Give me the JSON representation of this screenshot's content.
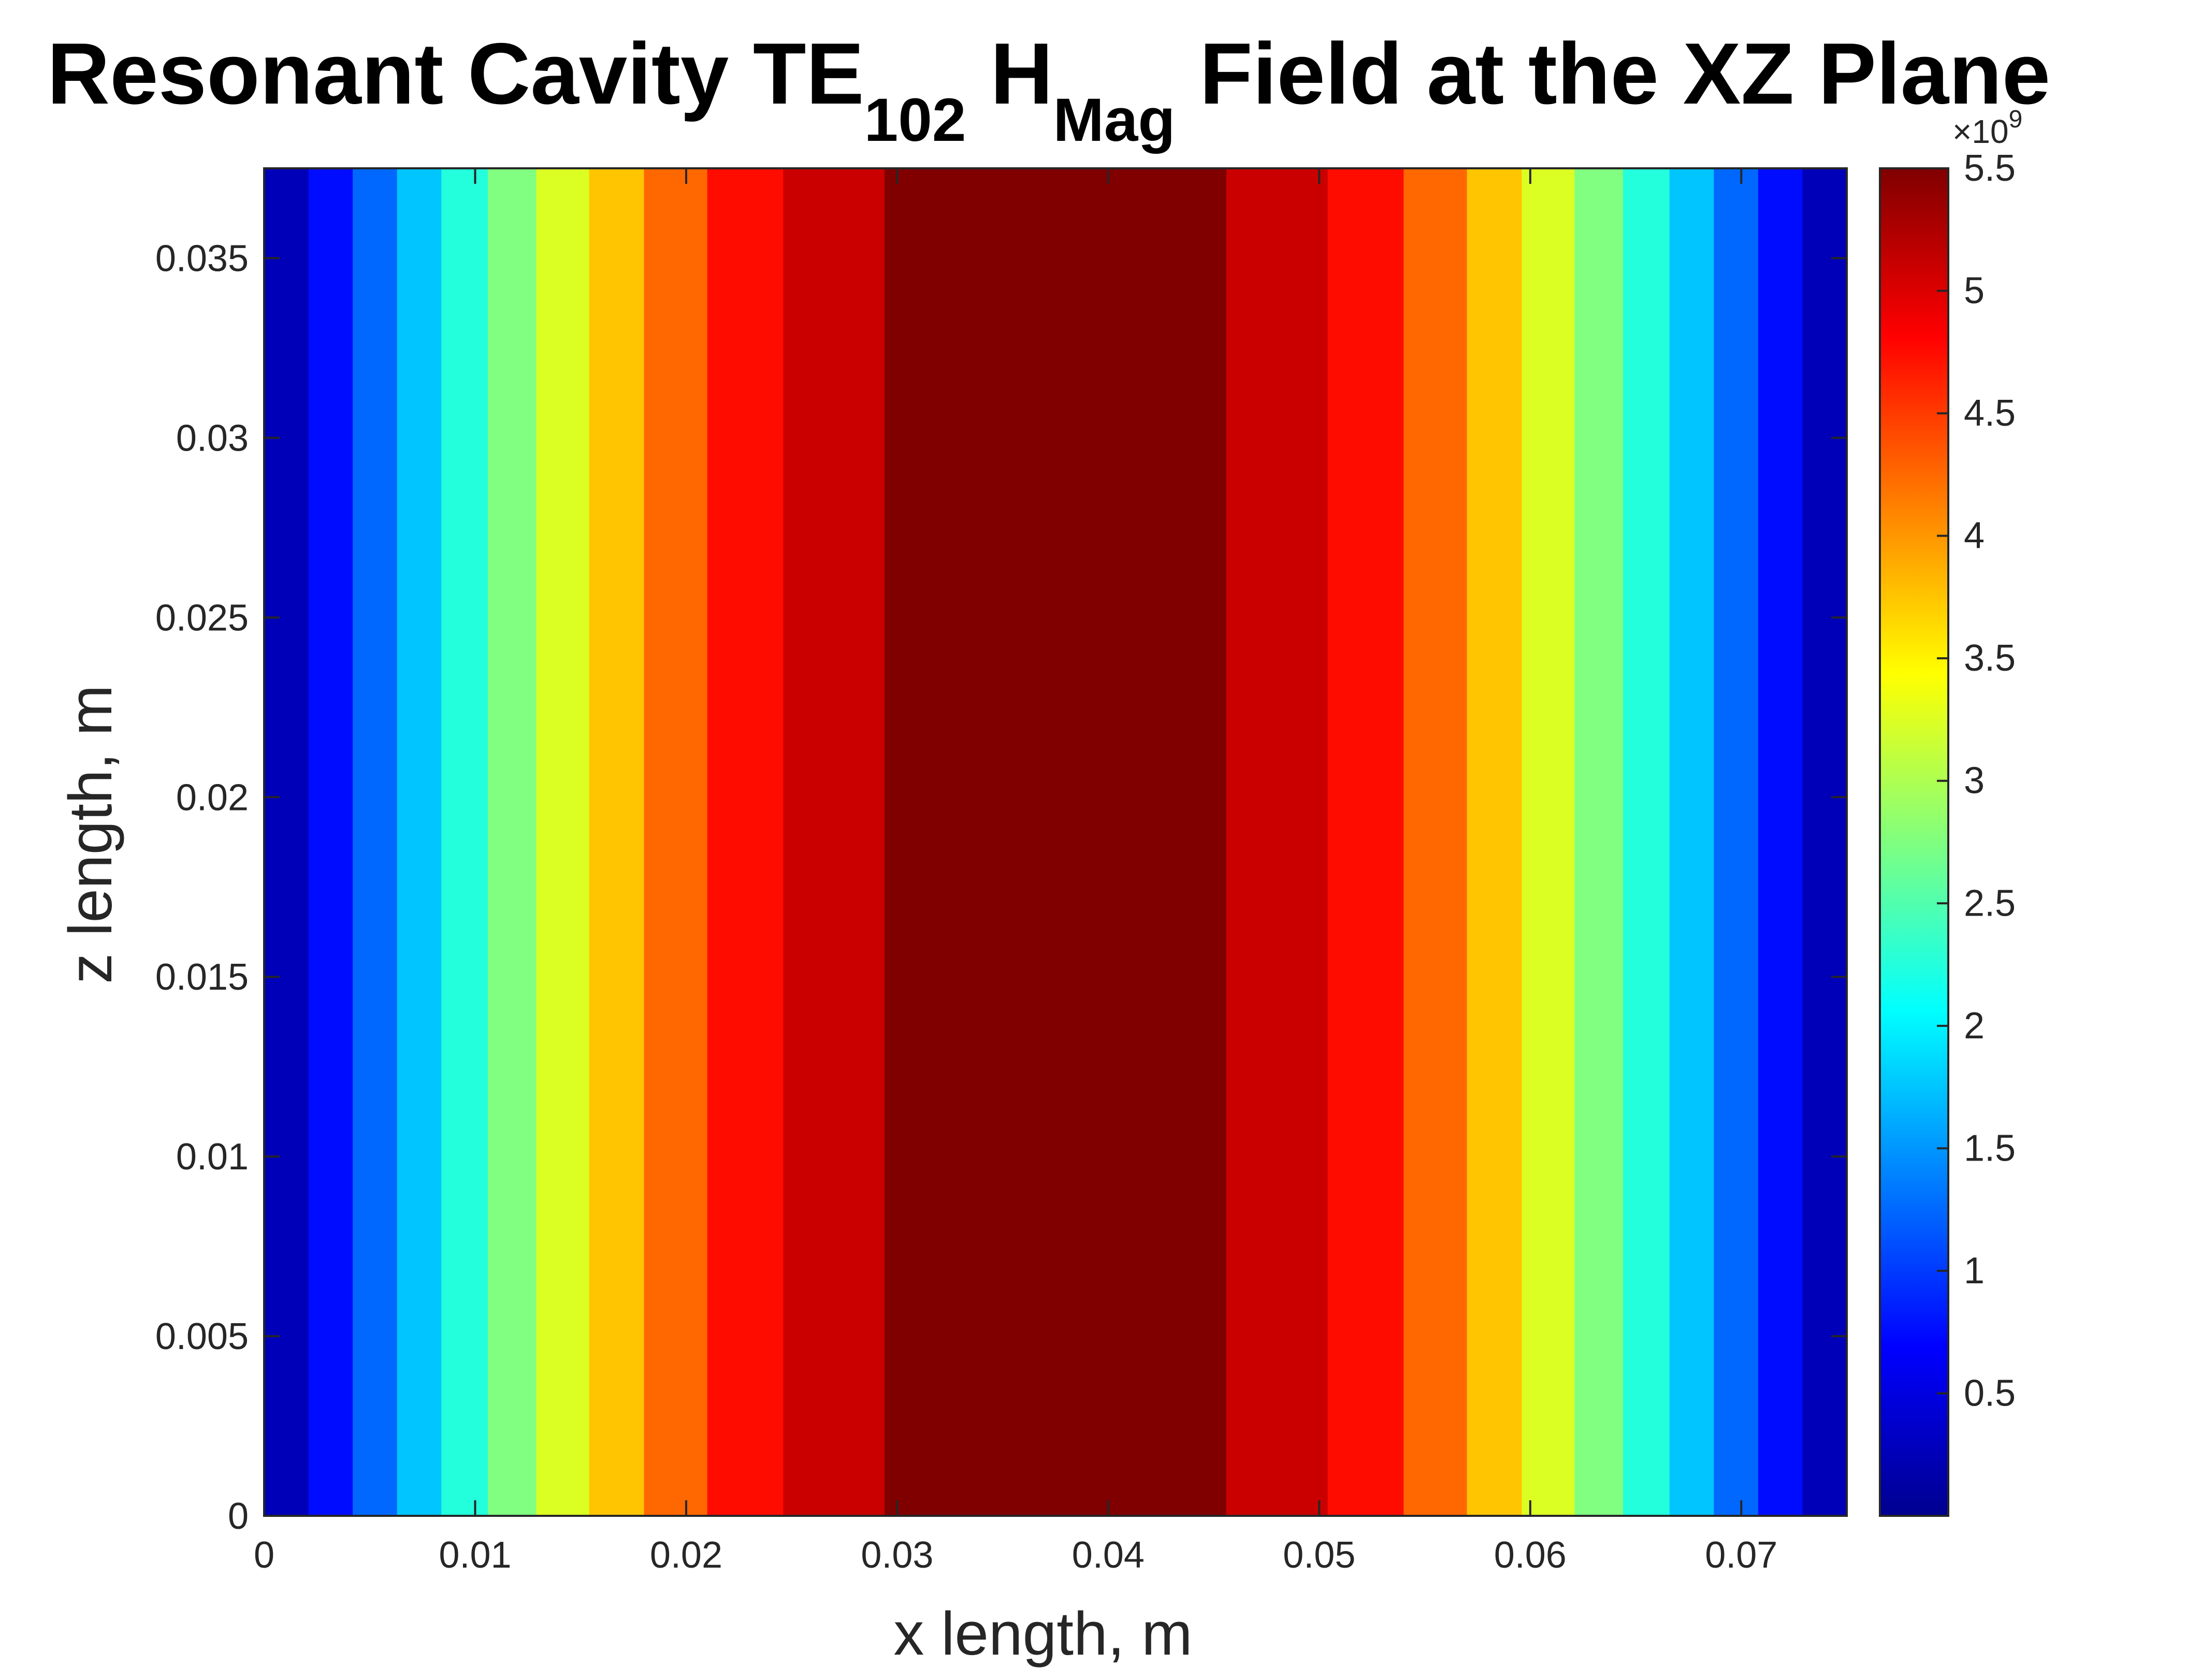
{
  "chart_data": {
    "type": "heatmap",
    "title": {
      "prefix": "Resonant Cavity TE",
      "sub1": "102",
      "mid": " H",
      "sub2": "Mag",
      "suffix": " Field at the XZ Plane"
    },
    "xlabel": "x length, m",
    "ylabel": "z length, m",
    "xlim": [
      0,
      0.075
    ],
    "ylim": [
      0,
      0.0375
    ],
    "x_ticks": [
      0,
      0.01,
      0.02,
      0.03,
      0.04,
      0.05,
      0.06,
      0.07
    ],
    "x_tick_labels": [
      "0",
      "0.01",
      "0.02",
      "0.03",
      "0.04",
      "0.05",
      "0.06",
      "0.07"
    ],
    "y_ticks": [
      0,
      0.005,
      0.01,
      0.015,
      0.02,
      0.025,
      0.03,
      0.035
    ],
    "y_tick_labels": [
      "0",
      "0.005",
      "0.01",
      "0.015",
      "0.02",
      "0.025",
      "0.03",
      "0.035"
    ],
    "colormap": "jet",
    "colorbar": {
      "clim": [
        0,
        5.5
      ],
      "ticks": [
        0.5,
        1,
        1.5,
        2,
        2.5,
        3,
        3.5,
        4,
        4.5,
        5,
        5.5
      ],
      "tick_labels": [
        "0.5",
        "1",
        "1.5",
        "2",
        "2.5",
        "3",
        "3.5",
        "4",
        "4.5",
        "5",
        "5.5"
      ],
      "exponent_base": "×10",
      "exponent_power": "9"
    },
    "bands": [
      {
        "x0": 0.0,
        "x1": 0.0021,
        "value": 0.25
      },
      {
        "x0": 0.0021,
        "x1": 0.0042,
        "value": 0.75
      },
      {
        "x0": 0.0042,
        "x1": 0.0063,
        "value": 1.25
      },
      {
        "x0": 0.0063,
        "x1": 0.0084,
        "value": 1.75
      },
      {
        "x0": 0.0084,
        "x1": 0.0106,
        "value": 2.25
      },
      {
        "x0": 0.0106,
        "x1": 0.0129,
        "value": 2.75
      },
      {
        "x0": 0.0129,
        "x1": 0.0154,
        "value": 3.25
      },
      {
        "x0": 0.0154,
        "x1": 0.018,
        "value": 3.75
      },
      {
        "x0": 0.018,
        "x1": 0.021,
        "value": 4.25
      },
      {
        "x0": 0.021,
        "x1": 0.0246,
        "value": 4.75
      },
      {
        "x0": 0.0246,
        "x1": 0.0294,
        "value": 5.1
      },
      {
        "x0": 0.0294,
        "x1": 0.0456,
        "value": 5.5
      },
      {
        "x0": 0.0456,
        "x1": 0.0504,
        "value": 5.1
      },
      {
        "x0": 0.0504,
        "x1": 0.054,
        "value": 4.75
      },
      {
        "x0": 0.054,
        "x1": 0.057,
        "value": 4.25
      },
      {
        "x0": 0.057,
        "x1": 0.0596,
        "value": 3.75
      },
      {
        "x0": 0.0596,
        "x1": 0.0621,
        "value": 3.25
      },
      {
        "x0": 0.0621,
        "x1": 0.0644,
        "value": 2.75
      },
      {
        "x0": 0.0644,
        "x1": 0.0666,
        "value": 2.25
      },
      {
        "x0": 0.0666,
        "x1": 0.0687,
        "value": 1.75
      },
      {
        "x0": 0.0687,
        "x1": 0.0708,
        "value": 1.25
      },
      {
        "x0": 0.0708,
        "x1": 0.0729,
        "value": 0.75
      },
      {
        "x0": 0.0729,
        "x1": 0.075,
        "value": 0.25
      }
    ]
  }
}
